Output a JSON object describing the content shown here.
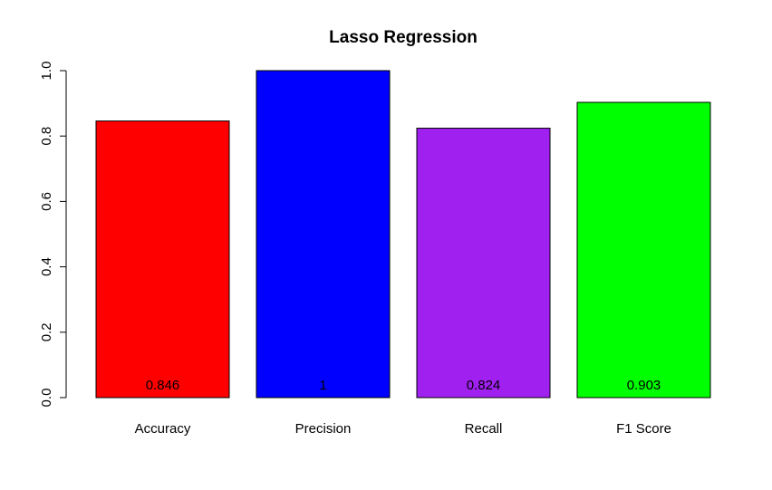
{
  "chart_data": {
    "type": "bar",
    "title": "Lasso Regression",
    "xlabel": "",
    "ylabel": "",
    "categories": [
      "Accuracy",
      "Precision",
      "Recall",
      "F1 Score"
    ],
    "values": [
      0.846,
      1,
      0.824,
      0.903
    ],
    "value_labels": [
      "0.846",
      "1",
      "0.824",
      "0.903"
    ],
    "colors": [
      "#ff0000",
      "#0000ff",
      "#a020f0",
      "#00ff00"
    ],
    "ylim": [
      0,
      1
    ],
    "yticks": [
      0.0,
      0.2,
      0.4,
      0.6,
      0.8,
      1.0
    ],
    "ytick_labels": [
      "0.0",
      "0.2",
      "0.4",
      "0.6",
      "0.8",
      "1.0"
    ],
    "grid": false,
    "legend": "none"
  }
}
